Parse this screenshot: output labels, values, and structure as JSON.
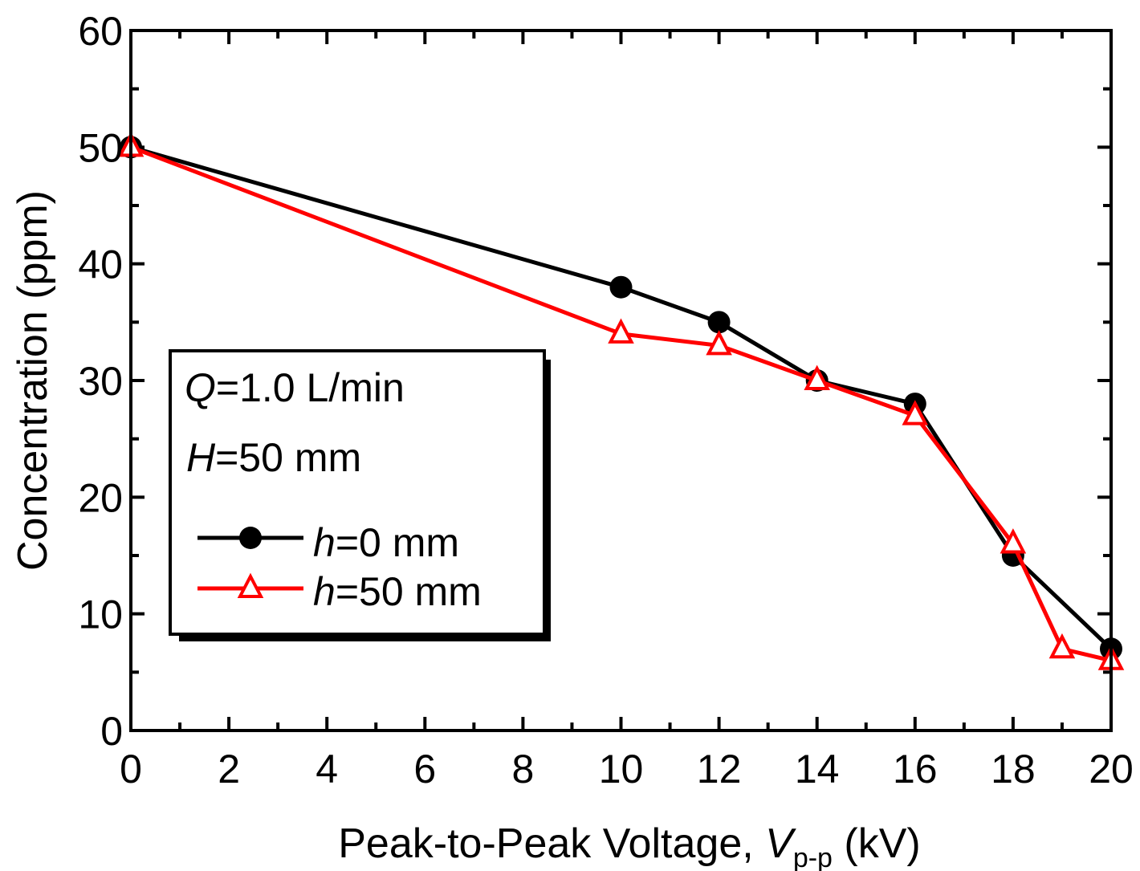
{
  "chart_data": {
    "type": "line",
    "xlabel_parts": {
      "prefix": "Peak-to-Peak Voltage, ",
      "var": "V",
      "sub": "p-p",
      "suffix": " (kV)"
    },
    "ylabel": "Concentration  (ppm)",
    "xlim": [
      0,
      20
    ],
    "ylim": [
      0,
      60
    ],
    "xticks": [
      0,
      2,
      4,
      6,
      8,
      10,
      12,
      14,
      16,
      18,
      20
    ],
    "yticks": [
      0,
      10,
      20,
      30,
      40,
      50,
      60
    ],
    "grid": false,
    "legend_position": "left-center",
    "conditions": [
      {
        "var": "Q",
        "text": "=1.0 L/min"
      },
      {
        "var": "H",
        "text": "=50 mm"
      }
    ],
    "series": [
      {
        "var": "h",
        "label": "=0 mm",
        "color": "#000000",
        "marker": "filled-circle",
        "points": [
          [
            0,
            50
          ],
          [
            10,
            38
          ],
          [
            12,
            35
          ],
          [
            14,
            30
          ],
          [
            16,
            28
          ],
          [
            18,
            15
          ],
          [
            20,
            7
          ]
        ]
      },
      {
        "var": "h",
        "label": "=50 mm",
        "color": "#ff0000",
        "marker": "open-triangle",
        "points": [
          [
            0,
            50
          ],
          [
            10,
            34
          ],
          [
            12,
            33
          ],
          [
            14,
            30
          ],
          [
            16,
            27
          ],
          [
            18,
            16
          ],
          [
            19,
            7
          ],
          [
            20,
            6
          ]
        ]
      }
    ]
  }
}
